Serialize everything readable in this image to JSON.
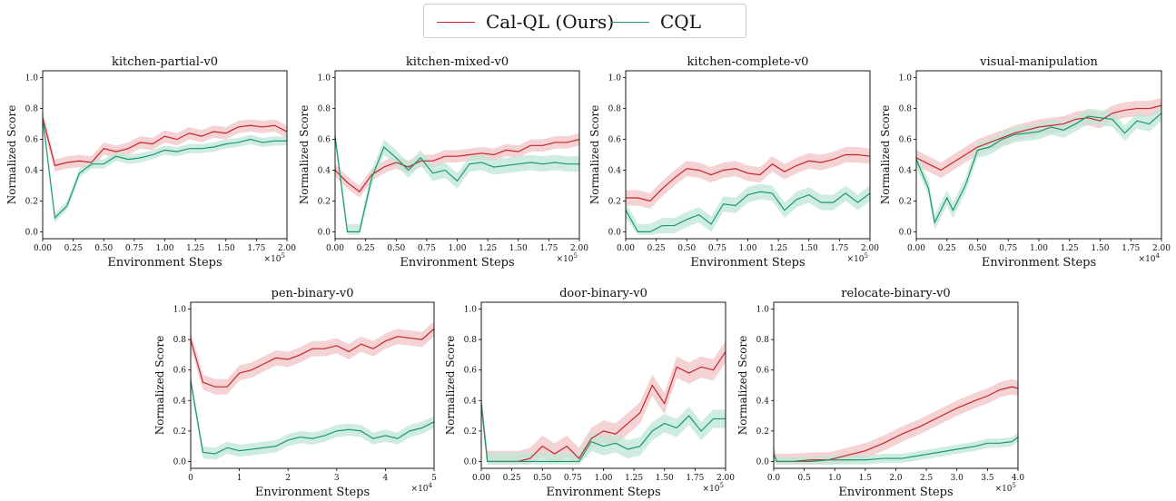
{
  "colors": {
    "cal_ql": "#c8252c",
    "cql": "#1a9a6c",
    "cal_ql_band": "#f2c4c6",
    "cql_band": "#bfe6d7"
  },
  "legend": [
    {
      "name": "Cal-QL (Ours)",
      "color": "#c8252c"
    },
    {
      "name": "CQL",
      "color": "#1a9a6c"
    }
  ],
  "chart_data": [
    {
      "type": "line",
      "title": "kitchen-partial-v0",
      "xlabel": "Environment Steps",
      "ylabel": "Normalized Score",
      "xlim": [
        0,
        2.0
      ],
      "ylim": [
        0,
        1.0
      ],
      "x_multiplier": "×10^5",
      "xticks": [
        "0.00",
        "0.25",
        "0.50",
        "0.75",
        "1.00",
        "1.25",
        "1.50",
        "1.75",
        "2.00"
      ],
      "yticks": [
        "0.0",
        "0.2",
        "0.4",
        "0.6",
        "0.8",
        "1.0"
      ],
      "series": [
        {
          "name": "Cal-QL (Ours)",
          "x": [
            0,
            0.1,
            0.2,
            0.3,
            0.4,
            0.5,
            0.6,
            0.7,
            0.8,
            0.9,
            1.0,
            1.1,
            1.2,
            1.3,
            1.4,
            1.5,
            1.6,
            1.7,
            1.8,
            1.9,
            2.0
          ],
          "values": [
            0.74,
            0.43,
            0.45,
            0.46,
            0.45,
            0.54,
            0.52,
            0.54,
            0.58,
            0.57,
            0.62,
            0.6,
            0.64,
            0.62,
            0.65,
            0.64,
            0.68,
            0.69,
            0.68,
            0.69,
            0.65
          ],
          "band": 0.04
        },
        {
          "name": "CQL",
          "x": [
            0,
            0.1,
            0.2,
            0.3,
            0.4,
            0.5,
            0.6,
            0.7,
            0.8,
            0.9,
            1.0,
            1.1,
            1.2,
            1.3,
            1.4,
            1.5,
            1.6,
            1.7,
            1.8,
            1.9,
            2.0
          ],
          "values": [
            0.74,
            0.09,
            0.17,
            0.38,
            0.44,
            0.44,
            0.49,
            0.47,
            0.48,
            0.5,
            0.53,
            0.52,
            0.54,
            0.54,
            0.55,
            0.57,
            0.58,
            0.6,
            0.58,
            0.59,
            0.59
          ],
          "band": 0.03
        }
      ]
    },
    {
      "type": "line",
      "title": "kitchen-mixed-v0",
      "xlabel": "Environment Steps",
      "ylabel": "Normalized Score",
      "xlim": [
        0,
        2.0
      ],
      "ylim": [
        0,
        1.0
      ],
      "x_multiplier": "×10^5",
      "xticks": [
        "0.00",
        "0.25",
        "0.50",
        "0.75",
        "1.00",
        "1.25",
        "1.50",
        "1.75",
        "2.00"
      ],
      "yticks": [
        "0.0",
        "0.2",
        "0.4",
        "0.6",
        "0.8",
        "1.0"
      ],
      "series": [
        {
          "name": "Cal-QL (Ours)",
          "x": [
            0,
            0.1,
            0.2,
            0.3,
            0.4,
            0.5,
            0.6,
            0.7,
            0.8,
            0.9,
            1.0,
            1.1,
            1.2,
            1.3,
            1.4,
            1.5,
            1.6,
            1.7,
            1.8,
            1.9,
            2.0
          ],
          "values": [
            0.4,
            0.32,
            0.26,
            0.37,
            0.42,
            0.45,
            0.42,
            0.46,
            0.46,
            0.49,
            0.49,
            0.5,
            0.51,
            0.5,
            0.53,
            0.52,
            0.56,
            0.56,
            0.58,
            0.58,
            0.6
          ],
          "band": 0.04
        },
        {
          "name": "CQL",
          "x": [
            0,
            0.1,
            0.15,
            0.2,
            0.3,
            0.4,
            0.5,
            0.6,
            0.7,
            0.8,
            0.9,
            1.0,
            1.1,
            1.2,
            1.3,
            1.4,
            1.5,
            1.6,
            1.7,
            1.8,
            1.9,
            2.0
          ],
          "values": [
            0.62,
            0.0,
            0.0,
            0.0,
            0.35,
            0.55,
            0.48,
            0.4,
            0.48,
            0.38,
            0.4,
            0.33,
            0.44,
            0.45,
            0.42,
            0.43,
            0.44,
            0.45,
            0.44,
            0.45,
            0.44,
            0.44
          ],
          "band": 0.05
        }
      ]
    },
    {
      "type": "line",
      "title": "kitchen-complete-v0",
      "xlabel": "Environment Steps",
      "ylabel": "Normalized Score",
      "xlim": [
        0,
        2.0
      ],
      "ylim": [
        0,
        1.0
      ],
      "x_multiplier": "×10^5",
      "xticks": [
        "0.00",
        "0.25",
        "0.50",
        "0.75",
        "1.00",
        "1.25",
        "1.50",
        "1.75",
        "2.00"
      ],
      "yticks": [
        "0.0",
        "0.2",
        "0.4",
        "0.6",
        "0.8",
        "1.0"
      ],
      "series": [
        {
          "name": "Cal-QL (Ours)",
          "x": [
            0,
            0.1,
            0.2,
            0.3,
            0.4,
            0.5,
            0.6,
            0.7,
            0.8,
            0.9,
            1.0,
            1.1,
            1.2,
            1.3,
            1.4,
            1.5,
            1.6,
            1.7,
            1.8,
            1.9,
            2.0
          ],
          "values": [
            0.22,
            0.22,
            0.2,
            0.28,
            0.35,
            0.41,
            0.4,
            0.37,
            0.4,
            0.41,
            0.38,
            0.37,
            0.44,
            0.39,
            0.43,
            0.46,
            0.45,
            0.47,
            0.5,
            0.5,
            0.49
          ],
          "band": 0.05
        },
        {
          "name": "CQL",
          "x": [
            0,
            0.1,
            0.2,
            0.3,
            0.4,
            0.5,
            0.6,
            0.7,
            0.8,
            0.9,
            1.0,
            1.1,
            1.2,
            1.3,
            1.4,
            1.5,
            1.6,
            1.7,
            1.8,
            1.9,
            2.0
          ],
          "values": [
            0.14,
            0.0,
            0.0,
            0.04,
            0.04,
            0.08,
            0.11,
            0.05,
            0.18,
            0.17,
            0.24,
            0.26,
            0.25,
            0.14,
            0.21,
            0.24,
            0.19,
            0.19,
            0.25,
            0.19,
            0.25
          ],
          "band": 0.05
        }
      ]
    },
    {
      "type": "line",
      "title": "visual-manipulation",
      "xlabel": "Environment Steps",
      "ylabel": "Normalized Score",
      "xlim": [
        0,
        2.0
      ],
      "ylim": [
        0,
        1.0
      ],
      "x_multiplier": "×10^4",
      "xticks": [
        "0.00",
        "0.25",
        "0.50",
        "0.75",
        "1.00",
        "1.25",
        "1.50",
        "1.75",
        "2.00"
      ],
      "yticks": [
        "0.0",
        "0.2",
        "0.4",
        "0.6",
        "0.8",
        "1.0"
      ],
      "series": [
        {
          "name": "Cal-QL (Ours)",
          "x": [
            0,
            0.1,
            0.2,
            0.3,
            0.4,
            0.5,
            0.6,
            0.7,
            0.8,
            0.9,
            1.0,
            1.1,
            1.2,
            1.3,
            1.4,
            1.5,
            1.6,
            1.7,
            1.8,
            1.9,
            2.0
          ],
          "values": [
            0.48,
            0.44,
            0.4,
            0.45,
            0.5,
            0.55,
            0.58,
            0.61,
            0.64,
            0.66,
            0.68,
            0.69,
            0.7,
            0.73,
            0.74,
            0.72,
            0.77,
            0.79,
            0.8,
            0.8,
            0.82
          ],
          "band": 0.05
        },
        {
          "name": "CQL",
          "x": [
            0,
            0.1,
            0.15,
            0.2,
            0.25,
            0.3,
            0.4,
            0.5,
            0.6,
            0.7,
            0.8,
            0.9,
            1.0,
            1.1,
            1.2,
            1.3,
            1.4,
            1.5,
            1.6,
            1.7,
            1.8,
            1.9,
            2.0
          ],
          "values": [
            0.47,
            0.28,
            0.06,
            0.14,
            0.22,
            0.14,
            0.3,
            0.53,
            0.55,
            0.6,
            0.63,
            0.64,
            0.65,
            0.68,
            0.66,
            0.7,
            0.75,
            0.74,
            0.73,
            0.64,
            0.72,
            0.7,
            0.77
          ],
          "band": 0.05
        }
      ]
    },
    {
      "type": "line",
      "title": "pen-binary-v0",
      "xlabel": "Environment Steps",
      "ylabel": "Normalized Score",
      "xlim": [
        0,
        5
      ],
      "ylim": [
        0,
        1.0
      ],
      "x_multiplier": "×10^4",
      "xticks": [
        "0",
        "1",
        "2",
        "3",
        "4",
        "5"
      ],
      "yticks": [
        "0.0",
        "0.2",
        "0.4",
        "0.6",
        "0.8",
        "1.0"
      ],
      "series": [
        {
          "name": "Cal-QL (Ours)",
          "x": [
            0,
            0.25,
            0.5,
            0.75,
            1.0,
            1.25,
            1.5,
            1.75,
            2.0,
            2.25,
            2.5,
            2.75,
            3.0,
            3.25,
            3.5,
            3.75,
            4.0,
            4.25,
            4.5,
            4.75,
            5.0
          ],
          "values": [
            0.8,
            0.52,
            0.49,
            0.49,
            0.58,
            0.6,
            0.64,
            0.68,
            0.67,
            0.7,
            0.74,
            0.74,
            0.76,
            0.72,
            0.77,
            0.74,
            0.79,
            0.82,
            0.81,
            0.8,
            0.87
          ],
          "band": 0.05
        },
        {
          "name": "CQL",
          "x": [
            0,
            0.25,
            0.5,
            0.75,
            1.0,
            1.25,
            1.5,
            1.75,
            2.0,
            2.25,
            2.5,
            2.75,
            3.0,
            3.25,
            3.5,
            3.75,
            4.0,
            4.25,
            4.5,
            4.75,
            5.0
          ],
          "values": [
            0.53,
            0.06,
            0.05,
            0.09,
            0.07,
            0.08,
            0.09,
            0.1,
            0.14,
            0.16,
            0.15,
            0.17,
            0.2,
            0.21,
            0.2,
            0.15,
            0.17,
            0.15,
            0.2,
            0.22,
            0.26
          ],
          "band": 0.04
        }
      ]
    },
    {
      "type": "line",
      "title": "door-binary-v0",
      "xlabel": "Environment Steps",
      "ylabel": "Normalized Score",
      "xlim": [
        0,
        2.0
      ],
      "ylim": [
        0,
        1.0
      ],
      "x_multiplier": "×10^5",
      "xticks": [
        "0.00",
        "0.25",
        "0.50",
        "0.75",
        "1.00",
        "1.25",
        "1.50",
        "1.75",
        "2.00"
      ],
      "yticks": [
        "0.0",
        "0.2",
        "0.4",
        "0.6",
        "0.8",
        "1.0"
      ],
      "series": [
        {
          "name": "Cal-QL (Ours)",
          "x": [
            0,
            0.05,
            0.2,
            0.3,
            0.4,
            0.5,
            0.6,
            0.7,
            0.8,
            0.9,
            1.0,
            1.1,
            1.2,
            1.3,
            1.4,
            1.5,
            1.6,
            1.7,
            1.8,
            1.9,
            2.0
          ],
          "values": [
            0.38,
            0.0,
            0.0,
            0.0,
            0.02,
            0.1,
            0.05,
            0.1,
            0.02,
            0.15,
            0.2,
            0.18,
            0.25,
            0.32,
            0.5,
            0.38,
            0.62,
            0.58,
            0.62,
            0.6,
            0.72
          ],
          "band": 0.07
        },
        {
          "name": "CQL",
          "x": [
            0,
            0.05,
            0.2,
            0.4,
            0.6,
            0.8,
            0.9,
            1.0,
            1.1,
            1.2,
            1.3,
            1.4,
            1.5,
            1.6,
            1.7,
            1.8,
            1.9,
            2.0
          ],
          "values": [
            0.38,
            0.0,
            0.0,
            0.0,
            0.0,
            0.0,
            0.13,
            0.1,
            0.12,
            0.08,
            0.1,
            0.2,
            0.25,
            0.22,
            0.3,
            0.2,
            0.28,
            0.28
          ],
          "band": 0.06
        }
      ]
    },
    {
      "type": "line",
      "title": "relocate-binary-v0",
      "xlabel": "Environment Steps",
      "ylabel": "Normalized Score",
      "xlim": [
        0,
        4.0
      ],
      "ylim": [
        0,
        1.0
      ],
      "x_multiplier": "×10^5",
      "xticks": [
        "0.0",
        "0.5",
        "1.0",
        "1.5",
        "2.0",
        "2.5",
        "3.0",
        "3.5",
        "4.0"
      ],
      "yticks": [
        "0.0",
        "0.2",
        "0.4",
        "0.6",
        "0.8",
        "1.0"
      ],
      "series": [
        {
          "name": "Cal-QL (Ours)",
          "x": [
            0,
            0.05,
            0.3,
            0.6,
            0.9,
            1.2,
            1.5,
            1.8,
            2.1,
            2.4,
            2.7,
            3.0,
            3.3,
            3.5,
            3.7,
            3.9,
            4.0
          ],
          "values": [
            0.05,
            0.0,
            0.0,
            0.01,
            0.01,
            0.04,
            0.07,
            0.12,
            0.18,
            0.23,
            0.29,
            0.35,
            0.4,
            0.43,
            0.47,
            0.49,
            0.48
          ],
          "band": 0.05
        },
        {
          "name": "CQL",
          "x": [
            0,
            0.05,
            0.3,
            0.6,
            0.9,
            1.2,
            1.5,
            1.8,
            2.1,
            2.4,
            2.7,
            3.0,
            3.3,
            3.5,
            3.7,
            3.9,
            4.0
          ],
          "values": [
            0.05,
            0.0,
            0.0,
            0.0,
            0.01,
            0.01,
            0.01,
            0.02,
            0.02,
            0.04,
            0.06,
            0.08,
            0.1,
            0.12,
            0.12,
            0.13,
            0.16
          ],
          "band": 0.03
        }
      ]
    }
  ]
}
